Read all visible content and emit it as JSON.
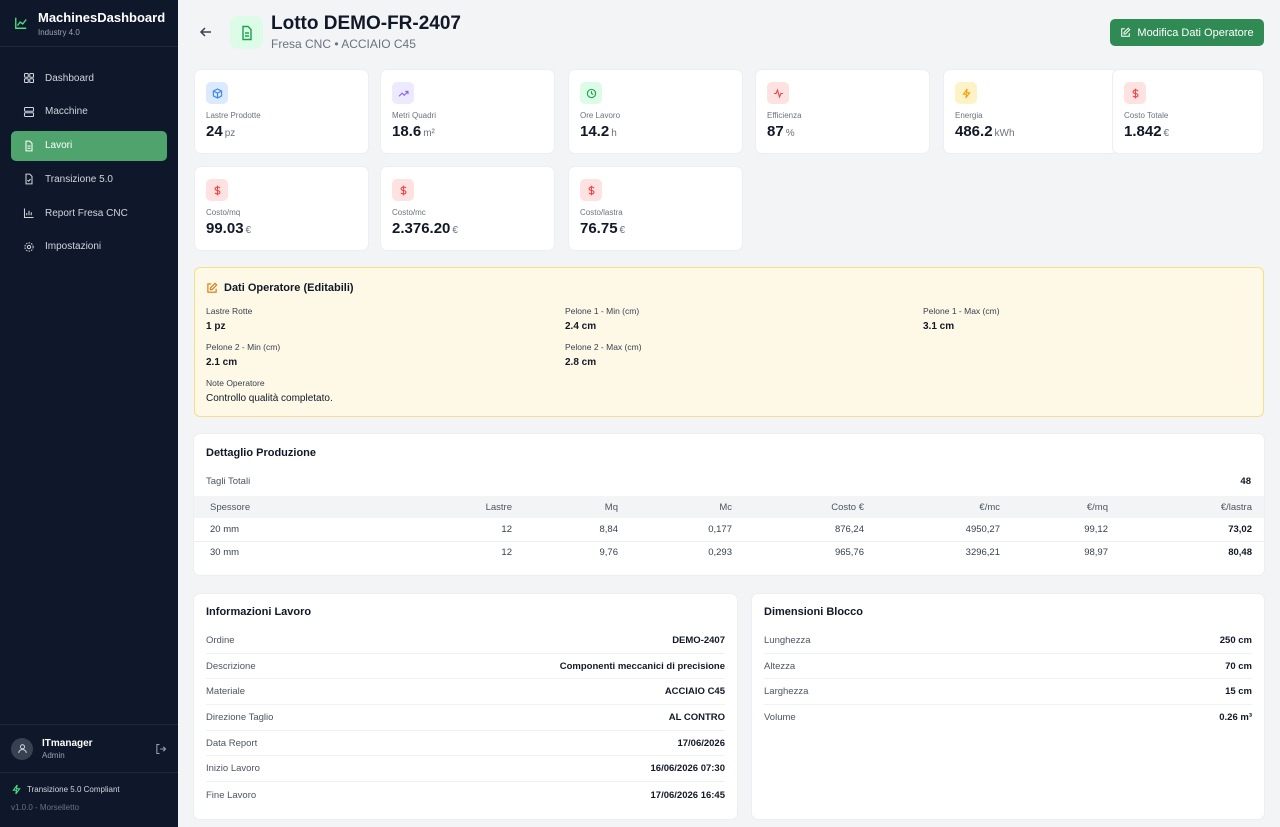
{
  "sidebar": {
    "brand_title": "MachinesDashboard",
    "brand_sub": "Industry 4.0",
    "items": [
      {
        "label": "Dashboard",
        "icon": "grid-icon"
      },
      {
        "label": "Macchine",
        "icon": "server-icon"
      },
      {
        "label": "Lavori",
        "icon": "file-icon",
        "active": true
      },
      {
        "label": "Transizione 5.0",
        "icon": "file-check-icon"
      },
      {
        "label": "Report Fresa CNC",
        "icon": "bar-chart-icon"
      },
      {
        "label": "Impostazioni",
        "icon": "gear-icon"
      }
    ],
    "user_name": "ITmanager",
    "user_role": "Admin",
    "compliance": "Transizione 5.0 Compliant",
    "version": "v1.0.0 - Morselletto"
  },
  "header": {
    "title": "Lotto DEMO-FR-2407",
    "subtitle": "Fresa CNC • ACCIAIO C45",
    "edit_button": "Modifica Dati Operatore"
  },
  "kpis": [
    {
      "label": "Lastre Prodotte",
      "value": "24",
      "unit": "pz",
      "icon": "box-icon",
      "color": "#3b82f6"
    },
    {
      "label": "Metri Quadri",
      "value": "18.6",
      "unit": "m²",
      "icon": "trending-up-icon",
      "color": "#8b5cf6"
    },
    {
      "label": "Ore Lavoro",
      "value": "14.2",
      "unit": "h",
      "icon": "clock-icon",
      "color": "#16a34a"
    },
    {
      "label": "Efficienza",
      "value": "87",
      "unit": "%",
      "icon": "activity-icon",
      "color": "#ef4444"
    },
    {
      "label": "Energia",
      "value": "486.2",
      "unit": "kWh",
      "icon": "bolt-icon",
      "color": "#f59e0b"
    },
    {
      "label": "Costo Totale",
      "value": "1.842",
      "unit": "€",
      "icon": "dollar-icon",
      "color": "#ef4444"
    },
    {
      "label": "Costo/mq",
      "value": "99.03",
      "unit": "€",
      "icon": "dollar-icon",
      "color": "#ef4444"
    },
    {
      "label": "Costo/mc",
      "value": "2.376.20",
      "unit": "€",
      "icon": "dollar-icon",
      "color": "#ef4444"
    },
    {
      "label": "Costo/lastra",
      "value": "76.75",
      "unit": "€",
      "icon": "dollar-icon",
      "color": "#ef4444"
    }
  ],
  "operator": {
    "title": "Dati Operatore (Editabili)",
    "lastre_rotte_label": "Lastre Rotte",
    "lastre_rotte": "1 pz",
    "p1min_label": "Pelone 1 - Min (cm)",
    "p1min": "2.4 cm",
    "p1max_label": "Pelone 1 - Max (cm)",
    "p1max": "3.1 cm",
    "p2min_label": "Pelone 2 - Min (cm)",
    "p2min": "2.1 cm",
    "p2max_label": "Pelone 2 - Max (cm)",
    "p2max": "2.8 cm",
    "note_label": "Note Operatore",
    "note": "Controllo qualità completato."
  },
  "production": {
    "title": "Dettaglio Produzione",
    "total_label": "Tagli Totali",
    "total_value": "48",
    "columns": [
      "Spessore",
      "Lastre",
      "Mq",
      "Mc",
      "Costo €",
      "€/mc",
      "€/mq",
      "€/lastra"
    ],
    "rows": [
      [
        "20 mm",
        "12",
        "8,84",
        "0,177",
        "876,24",
        "4950,27",
        "99,12",
        "73,02"
      ],
      [
        "30 mm",
        "12",
        "9,76",
        "0,293",
        "965,76",
        "3296,21",
        "98,97",
        "80,48"
      ]
    ]
  },
  "info": {
    "title": "Informazioni Lavoro",
    "rows": [
      {
        "k": "Ordine",
        "v": "DEMO-2407"
      },
      {
        "k": "Descrizione",
        "v": "Componenti meccanici di precisione"
      },
      {
        "k": "Materiale",
        "v": "ACCIAIO C45"
      },
      {
        "k": "Direzione Taglio",
        "v": "AL CONTRO"
      },
      {
        "k": "Data Report",
        "v": "17/06/2026"
      },
      {
        "k": "Inizio Lavoro",
        "v": "16/06/2026 07:30"
      },
      {
        "k": "Fine Lavoro",
        "v": "17/06/2026 16:45"
      }
    ]
  },
  "dims": {
    "title": "Dimensioni Blocco",
    "rows": [
      {
        "k": "Lunghezza",
        "v": "250 cm"
      },
      {
        "k": "Altezza",
        "v": "70 cm"
      },
      {
        "k": "Larghezza",
        "v": "15 cm"
      },
      {
        "k": "Volume",
        "v": "0.26 m³"
      }
    ]
  }
}
